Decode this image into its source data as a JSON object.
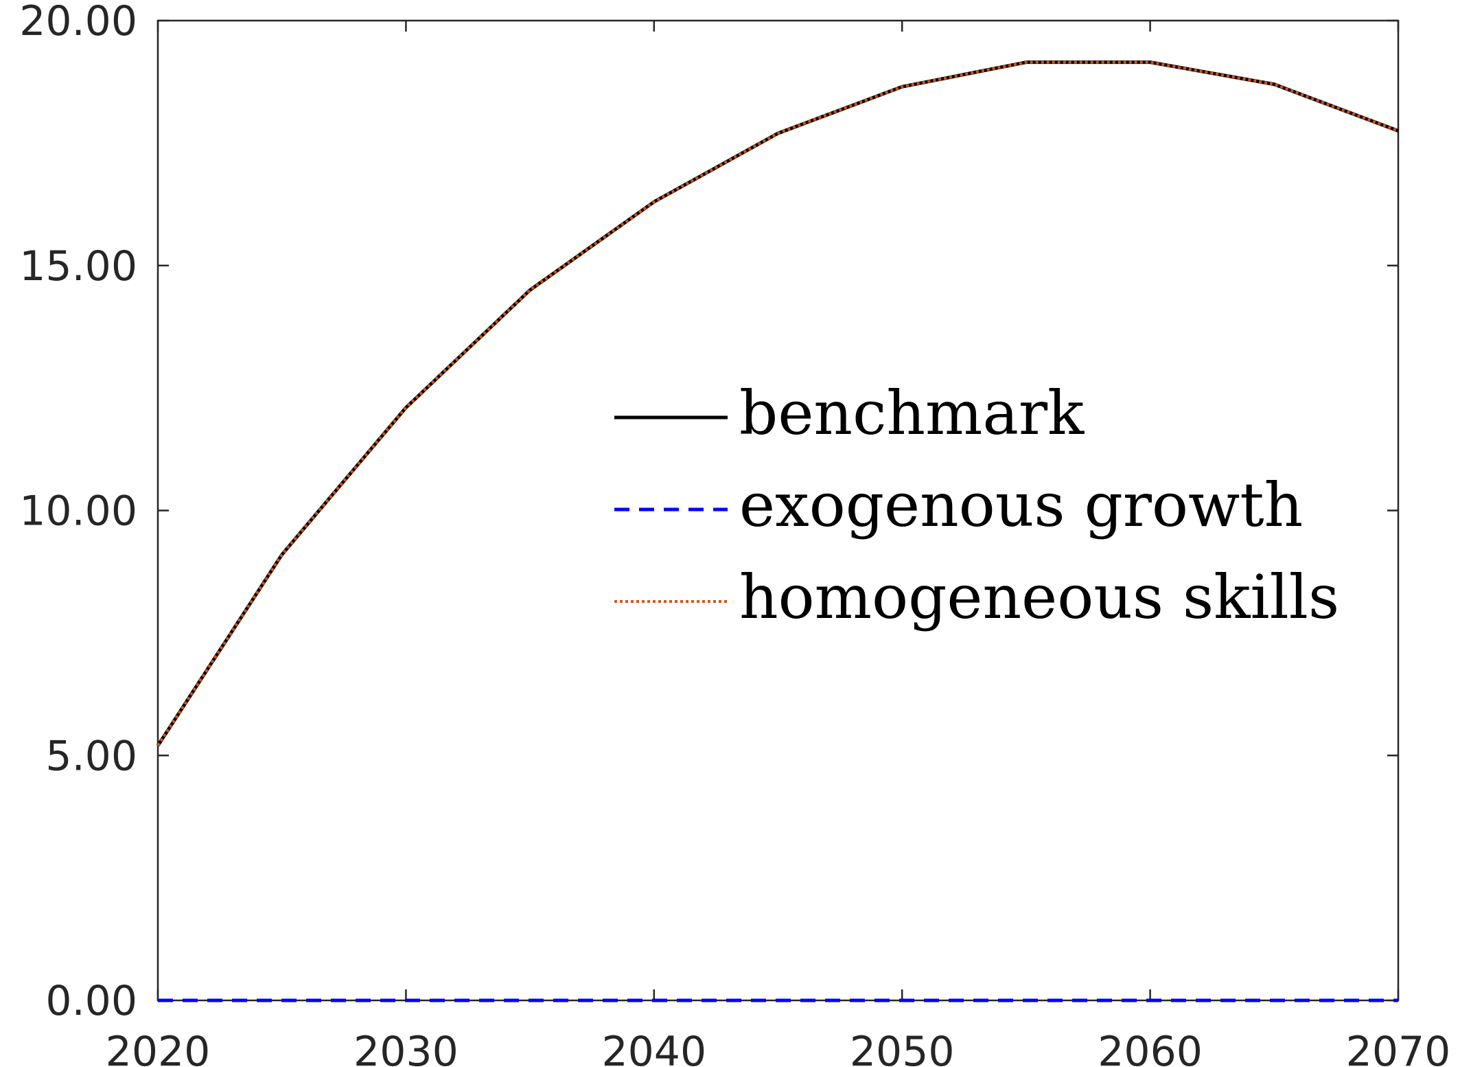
{
  "chart_data": {
    "type": "line",
    "title": "",
    "xlabel": "",
    "ylabel": "",
    "xlim": [
      2020,
      2070
    ],
    "ylim": [
      0,
      20
    ],
    "x_ticks": [
      2020,
      2030,
      2040,
      2050,
      2060,
      2070
    ],
    "y_ticks": [
      0,
      5,
      10,
      15,
      20
    ],
    "y_tick_labels": [
      "0.00",
      "5.00",
      "10.00",
      "15.00",
      "20.00"
    ],
    "x_tick_labels": [
      "2020",
      "2030",
      "2040",
      "2050",
      "2060",
      "2070"
    ],
    "grid": false,
    "legend_position": "center-right",
    "x": [
      2020,
      2025,
      2030,
      2035,
      2040,
      2045,
      2050,
      2055,
      2060,
      2065,
      2070
    ],
    "series": [
      {
        "name": "benchmark",
        "color": "#000000",
        "style": "solid",
        "values": [
          5.2,
          9.1,
          12.1,
          14.5,
          16.3,
          17.7,
          18.65,
          19.15,
          19.15,
          18.7,
          17.75
        ]
      },
      {
        "name": "exogenous growth",
        "color": "#0000ff",
        "style": "dashed",
        "values": [
          0,
          0,
          0,
          0,
          0,
          0,
          0,
          0,
          0,
          0,
          0
        ]
      },
      {
        "name": "homogeneous skills",
        "color": "#d95319",
        "style": "dotted",
        "values": [
          5.2,
          9.1,
          12.1,
          14.5,
          16.3,
          17.7,
          18.65,
          19.15,
          19.15,
          18.7,
          17.75
        ]
      }
    ]
  }
}
